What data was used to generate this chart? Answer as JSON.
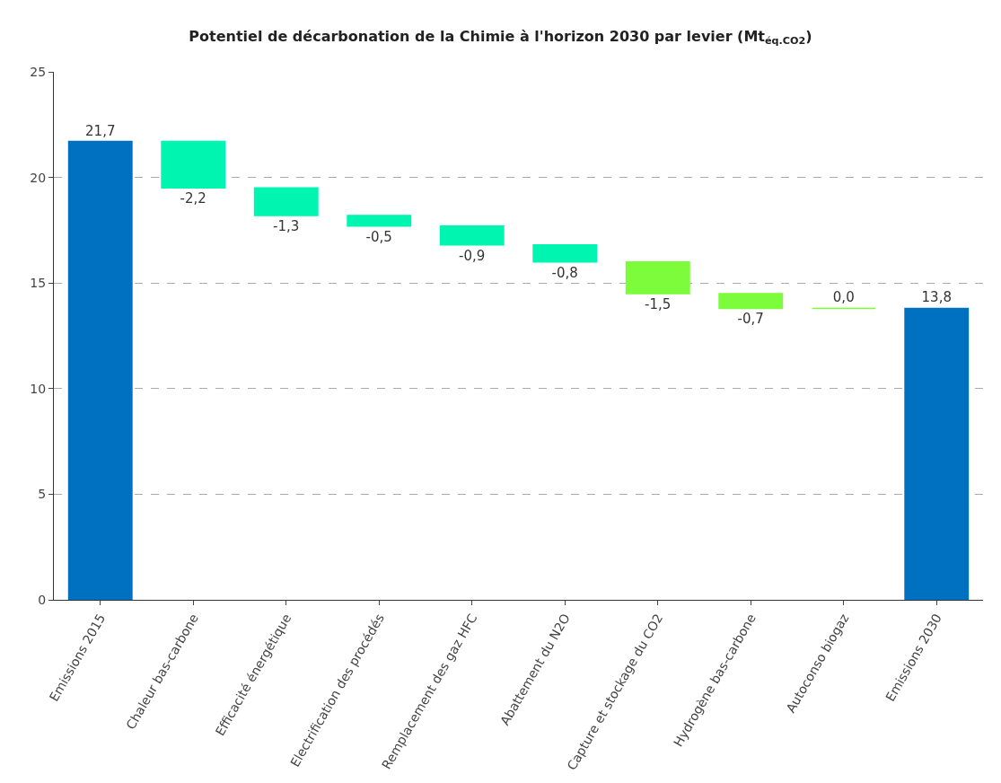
{
  "chart_data": {
    "type": "bar",
    "title": "Potentiel de décarbonation de la Chimie à l'horizon 2030 par levier (Mt$_{éq.CO2}$)",
    "categories": [
      "Emissions 2015",
      "Chaleur bas-carbone",
      "Efficacité énergétique",
      "Electrification des procédés",
      "Remplacement des gaz HFC",
      "Abattement du N2O",
      "Capture et stockage du CO2",
      "Hydrogène bas-carbone",
      "Autoconso biogaz",
      "Emissions 2030"
    ],
    "values": [
      21.7,
      -2.2,
      -1.3,
      -0.5,
      -0.9,
      -0.8,
      -1.5,
      -0.7,
      0.0,
      13.8
    ],
    "base": [
      0,
      21.7,
      19.5,
      18.2,
      17.7,
      16.8,
      16.0,
      14.5,
      13.8,
      0
    ],
    "colors": [
      "#0070c0",
      "#00f5b0",
      "#00f5b0",
      "#00f5b0",
      "#00f5b0",
      "#00f5b0",
      "#7cfc3a",
      "#7cfc3a",
      "#7cfc3a",
      "#0070c0"
    ],
    "value_labels": [
      "21,7",
      "-2,2",
      "-1,3",
      "-0,5",
      "-0,9",
      "-0,8",
      "-1,5",
      "-0,7",
      "0,0",
      "13,8"
    ],
    "ylim": [
      0,
      25
    ],
    "yticks": [
      0,
      5,
      10,
      15,
      20,
      25
    ],
    "grid": "y"
  }
}
